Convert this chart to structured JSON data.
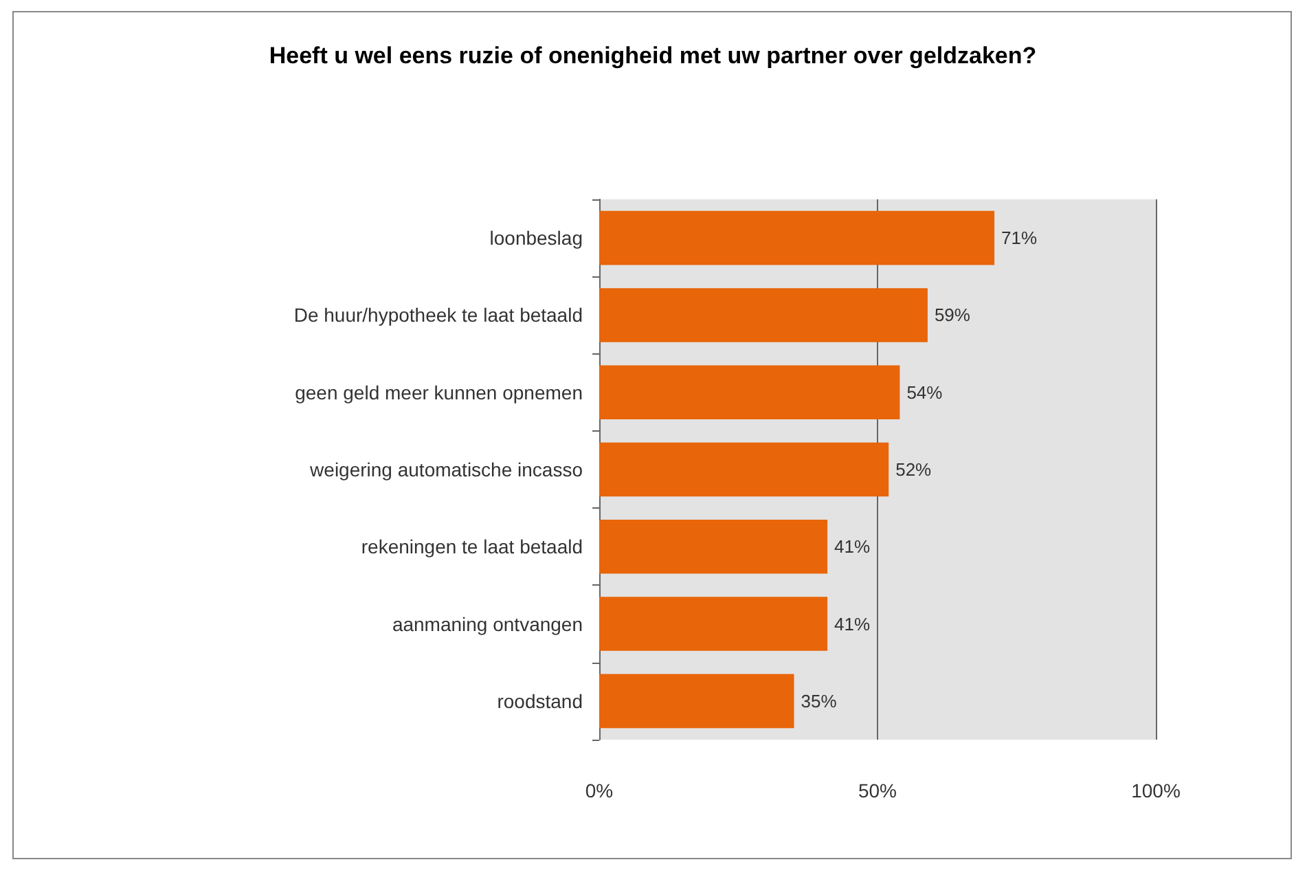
{
  "chart_data": {
    "type": "bar",
    "orientation": "horizontal",
    "title": "Heeft u wel eens ruzie of onenigheid met uw partner over geldzaken?",
    "categories": [
      "loonbeslag",
      "De huur/hypotheek te laat betaald",
      "geen geld meer kunnen opnemen",
      "weigering automatische incasso",
      "rekeningen te laat betaald",
      "aanmaning ontvangen",
      "roodstand"
    ],
    "values": [
      71,
      59,
      54,
      52,
      41,
      41,
      35
    ],
    "value_labels": [
      "71%",
      "59%",
      "54%",
      "52%",
      "41%",
      "41%",
      "35%"
    ],
    "color": "#e8650a",
    "xlim": [
      0,
      100
    ],
    "xticks": [
      {
        "value": 0,
        "label": "0%"
      },
      {
        "value": 50,
        "label": "50%"
      },
      {
        "value": 100,
        "label": "100%"
      }
    ],
    "grid": "x"
  }
}
